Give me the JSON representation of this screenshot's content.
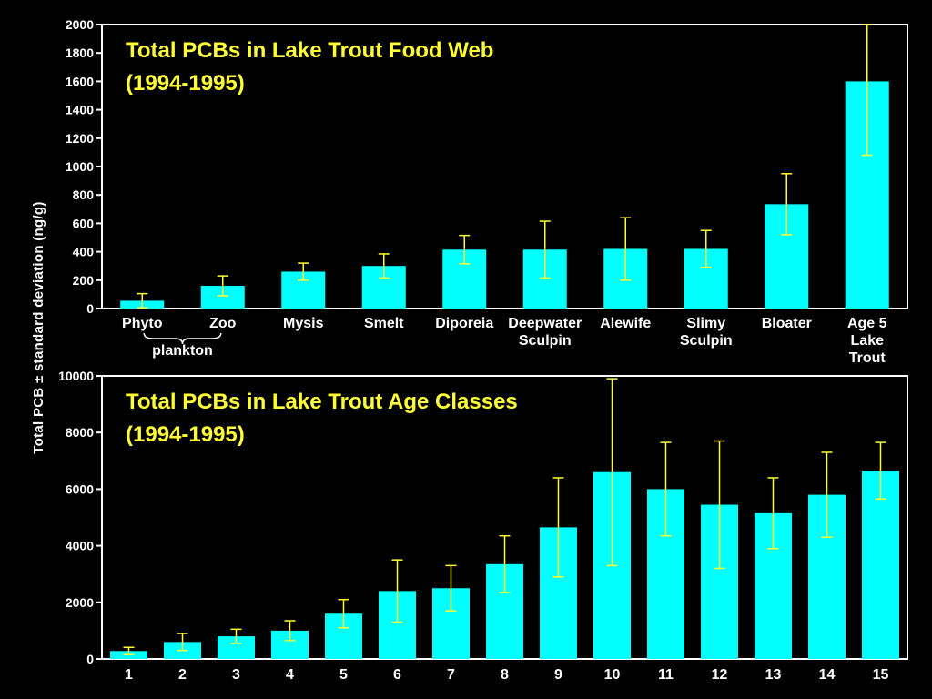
{
  "ylabel": "Total PCB ± standard deviation (ng/g)",
  "colors": {
    "bar": "#00ffff",
    "error": "#ffff33",
    "axis": "#ffffff",
    "background": "#000000",
    "title": "#ffff33"
  },
  "chart_data": [
    {
      "type": "bar",
      "title_line1": "Total PCBs in Lake Trout Food Web",
      "title_line2": "(1994-1995)",
      "ylim": [
        0,
        2000
      ],
      "yticks": [
        0,
        200,
        400,
        600,
        800,
        1000,
        1200,
        1400,
        1600,
        1800,
        2000
      ],
      "categories": [
        "Phyto",
        "Zoo",
        "Mysis",
        "Smelt",
        "Diporeia",
        "Deepwater Sculpin",
        "Alewife",
        "Slimy Sculpin",
        "Bloater",
        "Age 5 Lake Trout"
      ],
      "category_lines": [
        [
          "Phyto"
        ],
        [
          "Zoo"
        ],
        [
          "Mysis"
        ],
        [
          "Smelt"
        ],
        [
          "Diporeia"
        ],
        [
          "Deepwater",
          "Sculpin"
        ],
        [
          "Alewife"
        ],
        [
          "Slimy",
          "Sculpin"
        ],
        [
          "Bloater"
        ],
        [
          "Age 5",
          "Lake",
          "Trout"
        ]
      ],
      "values": [
        55,
        160,
        260,
        300,
        415,
        415,
        420,
        420,
        735,
        1600
      ],
      "errors": [
        50,
        70,
        60,
        85,
        100,
        200,
        220,
        130,
        215,
        520
      ],
      "group_label": "plankton"
    },
    {
      "type": "bar",
      "title_line1": "Total PCBs in Lake Trout Age Classes",
      "title_line2": "(1994-1995)",
      "ylim": [
        0,
        10000
      ],
      "yticks": [
        0,
        2000,
        4000,
        6000,
        8000,
        10000
      ],
      "categories": [
        "1",
        "2",
        "3",
        "4",
        "5",
        "6",
        "7",
        "8",
        "9",
        "10",
        "11",
        "12",
        "13",
        "14",
        "15"
      ],
      "values": [
        280,
        600,
        800,
        1000,
        1600,
        2400,
        2500,
        3350,
        4650,
        6600,
        6000,
        5450,
        5150,
        5800,
        6650
      ],
      "errors": [
        130,
        300,
        250,
        350,
        500,
        1100,
        800,
        1000,
        1750,
        3300,
        1650,
        2250,
        1250,
        1500,
        1000
      ]
    }
  ]
}
